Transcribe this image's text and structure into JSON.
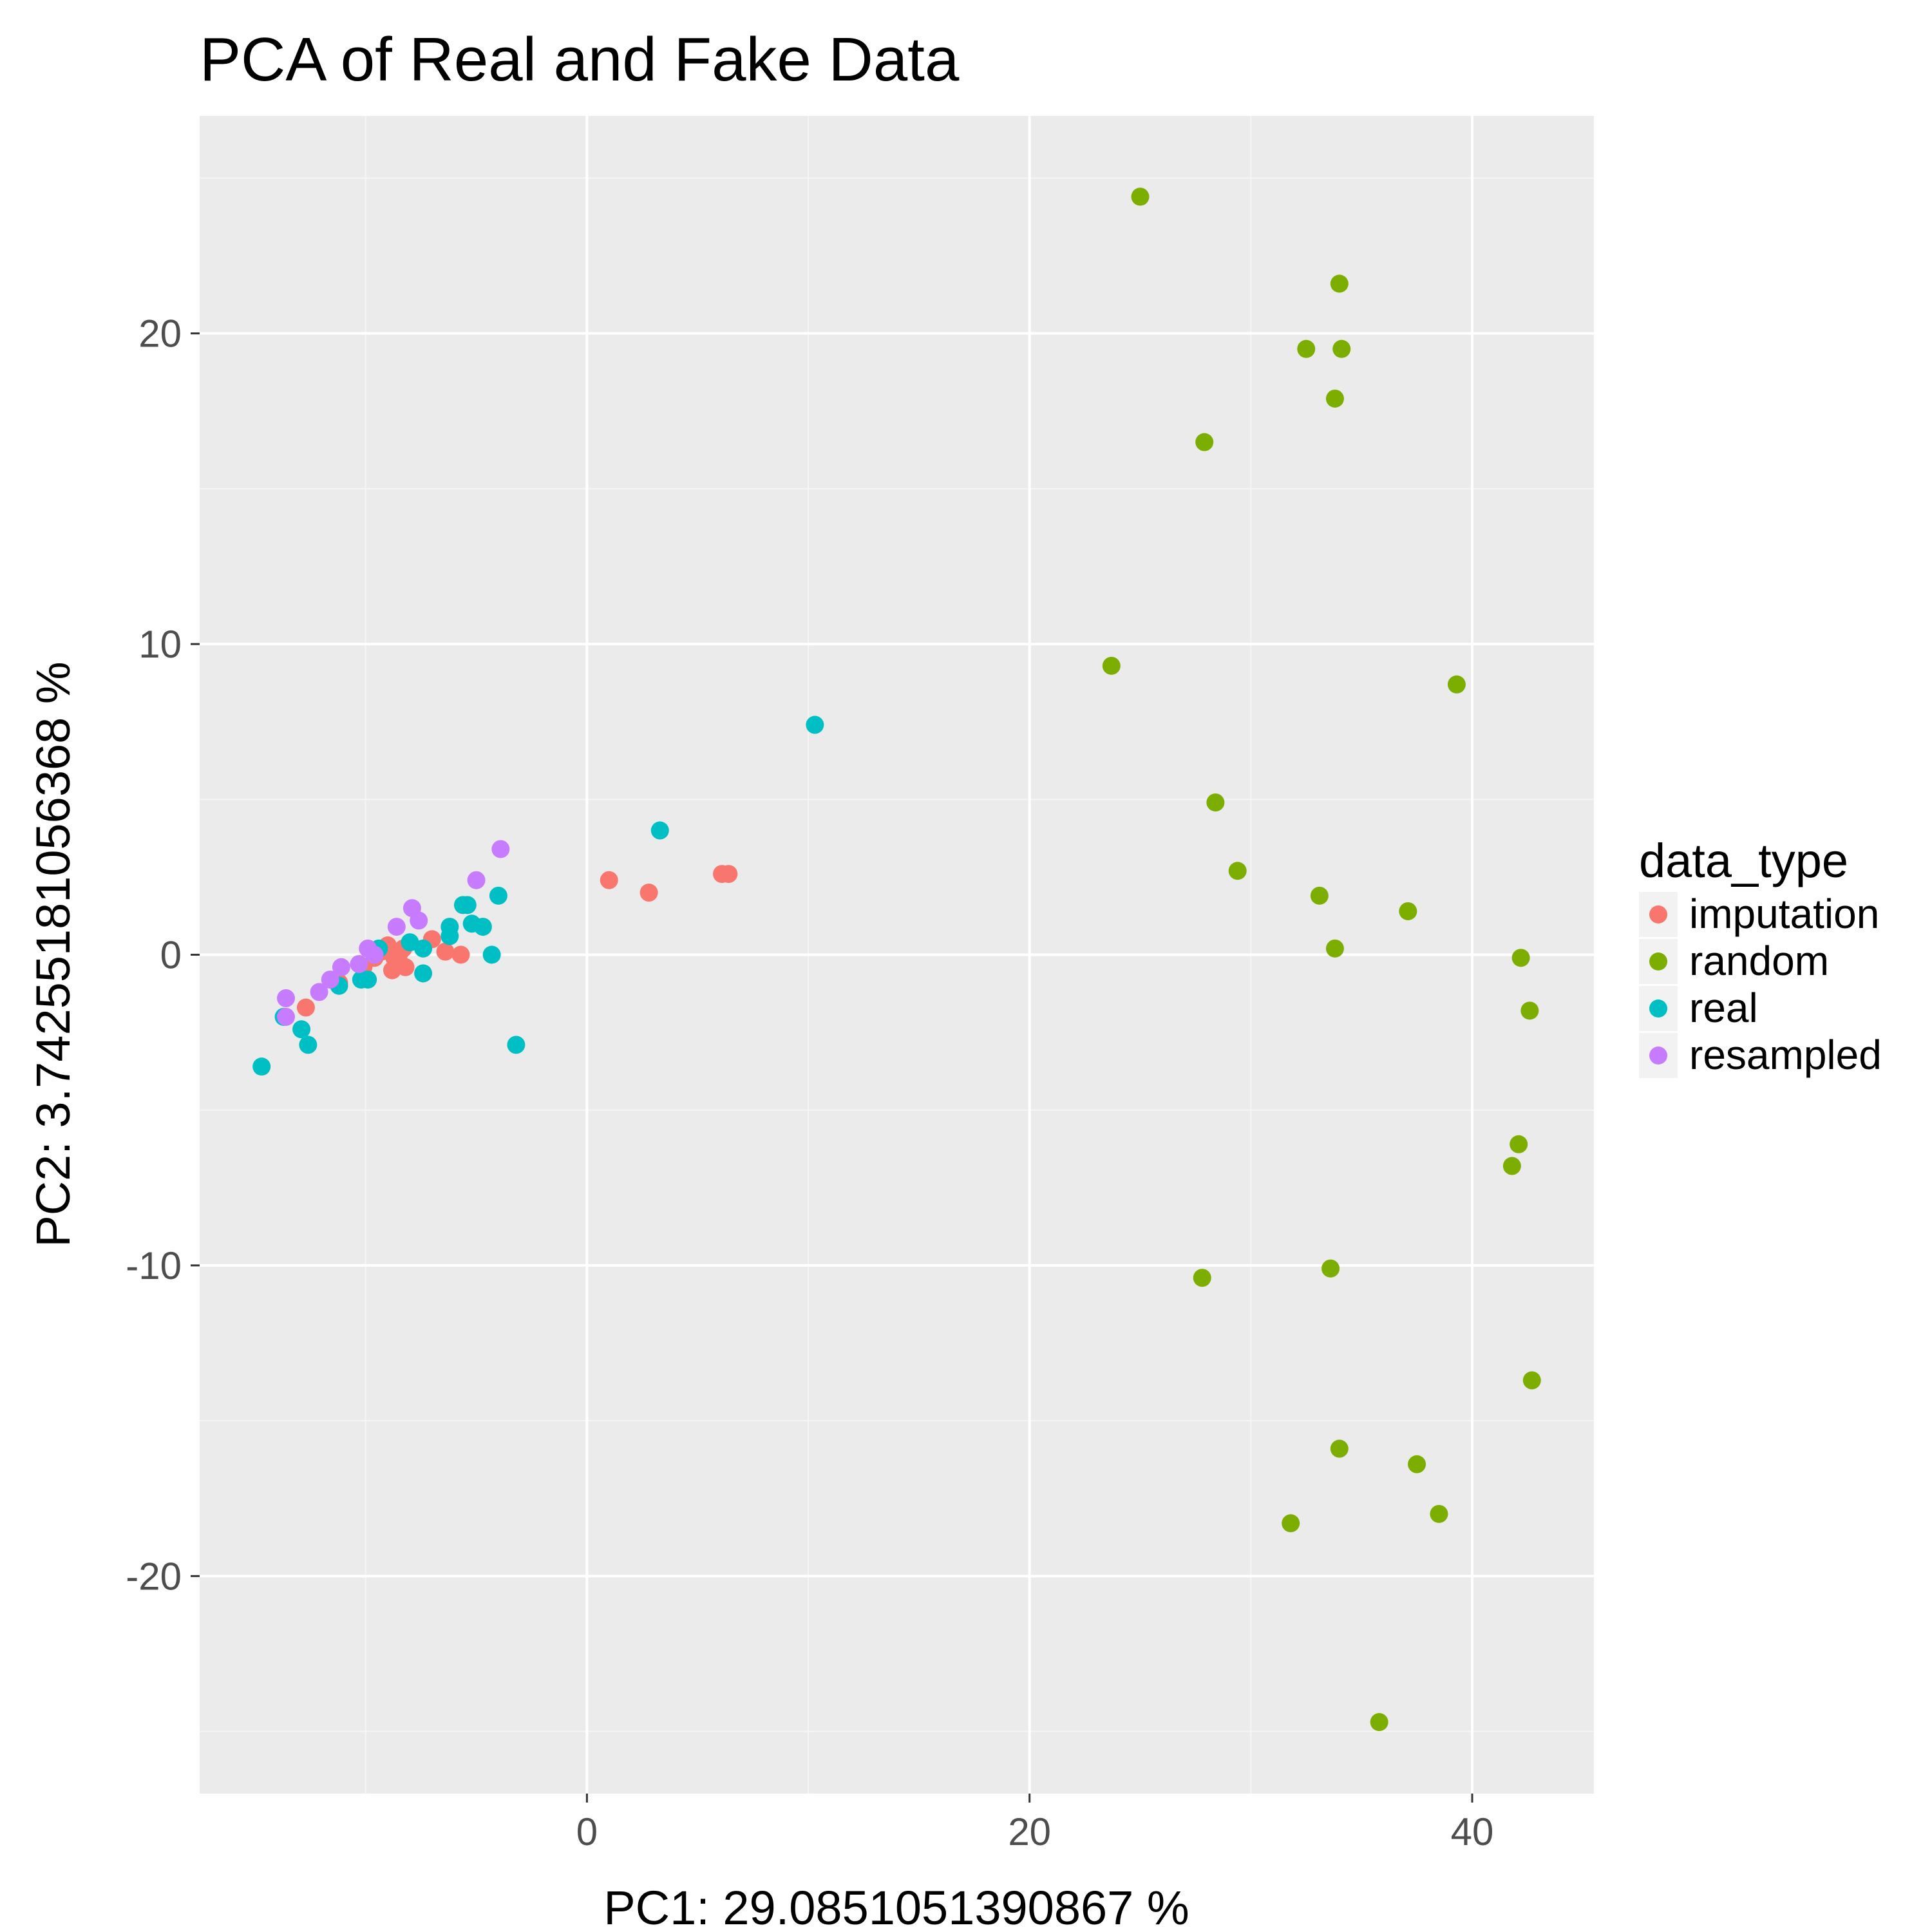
{
  "chart_data": {
    "type": "scatter",
    "title": "PCA of Real and Fake Data",
    "xlabel": "PC1:  29.0851051390867 %",
    "ylabel": "PC2:  3.74255181056368 %",
    "xlim": [
      -17.5,
      45.5
    ],
    "ylim": [
      -27,
      27
    ],
    "x_ticks": [
      0,
      20,
      40
    ],
    "y_ticks": [
      -20,
      -10,
      0,
      10,
      20
    ],
    "x_tick_labels": [
      "0",
      "20",
      "40"
    ],
    "y_tick_labels": [
      "-20",
      "-10",
      "0",
      "10",
      "20"
    ],
    "grid": true,
    "legend": {
      "title": "data_type",
      "position": "right"
    },
    "colors": {
      "panel_bg": "#ebebeb",
      "grid_major": "#ffffff",
      "imputation": "#f8766d",
      "random": "#7cae00",
      "real": "#00bfc4",
      "resampled": "#c77cff"
    },
    "series": [
      {
        "name": "imputation",
        "points": [
          [
            -12.7,
            -1.7
          ],
          [
            -11.2,
            -0.9
          ],
          [
            -10.1,
            -0.4
          ],
          [
            -9.6,
            -0.1
          ],
          [
            -9.3,
            0.1
          ],
          [
            -9.0,
            0.3
          ],
          [
            -8.7,
            -0.1
          ],
          [
            -8.8,
            -0.5
          ],
          [
            -8.5,
            0.0
          ],
          [
            -8.3,
            0.2
          ],
          [
            -8.2,
            -0.4
          ],
          [
            -7.0,
            0.5
          ],
          [
            -6.4,
            0.1
          ],
          [
            -5.7,
            0.0
          ],
          [
            1.0,
            2.4
          ],
          [
            2.8,
            2.0
          ],
          [
            6.1,
            2.6
          ],
          [
            6.4,
            2.6
          ]
        ]
      },
      {
        "name": "random",
        "points": [
          [
            25.0,
            24.4
          ],
          [
            34.0,
            21.6
          ],
          [
            32.5,
            19.5
          ],
          [
            34.1,
            19.5
          ],
          [
            33.8,
            17.9
          ],
          [
            27.9,
            16.5
          ],
          [
            23.7,
            9.3
          ],
          [
            39.3,
            8.7
          ],
          [
            28.4,
            4.9
          ],
          [
            29.4,
            2.7
          ],
          [
            33.1,
            1.9
          ],
          [
            37.1,
            1.4
          ],
          [
            33.8,
            0.2
          ],
          [
            42.2,
            -0.1
          ],
          [
            42.6,
            -1.8
          ],
          [
            42.1,
            -6.1
          ],
          [
            41.8,
            -6.8
          ],
          [
            27.8,
            -10.4
          ],
          [
            33.6,
            -10.1
          ],
          [
            42.7,
            -13.7
          ],
          [
            34.0,
            -15.9
          ],
          [
            37.5,
            -16.4
          ],
          [
            38.5,
            -18.0
          ],
          [
            31.8,
            -18.3
          ],
          [
            35.8,
            -24.7
          ]
        ]
      },
      {
        "name": "real",
        "points": [
          [
            -14.7,
            -3.6
          ],
          [
            -13.7,
            -2.0
          ],
          [
            -12.9,
            -2.4
          ],
          [
            -12.6,
            -2.9
          ],
          [
            -11.2,
            -1.0
          ],
          [
            -10.2,
            -0.8
          ],
          [
            -9.9,
            -0.8
          ],
          [
            -9.4,
            0.2
          ],
          [
            -8.0,
            0.4
          ],
          [
            -7.4,
            0.2
          ],
          [
            -7.4,
            -0.6
          ],
          [
            -6.2,
            0.9
          ],
          [
            -6.2,
            0.6
          ],
          [
            -5.6,
            1.6
          ],
          [
            -5.4,
            1.6
          ],
          [
            -5.2,
            1.0
          ],
          [
            -4.7,
            0.9
          ],
          [
            -4.3,
            0.0
          ],
          [
            -4.0,
            1.9
          ],
          [
            -3.2,
            -2.9
          ],
          [
            3.3,
            4.0
          ],
          [
            10.3,
            7.4
          ]
        ]
      },
      {
        "name": "resampled",
        "points": [
          [
            -13.6,
            -1.4
          ],
          [
            -13.6,
            -2.0
          ],
          [
            -12.1,
            -1.2
          ],
          [
            -11.6,
            -0.8
          ],
          [
            -11.1,
            -0.4
          ],
          [
            -10.3,
            -0.3
          ],
          [
            -9.9,
            0.2
          ],
          [
            -9.6,
            0.0
          ],
          [
            -8.6,
            0.9
          ],
          [
            -7.9,
            1.5
          ],
          [
            -7.6,
            1.1
          ],
          [
            -5.0,
            2.4
          ],
          [
            -3.9,
            3.4
          ]
        ]
      }
    ]
  }
}
